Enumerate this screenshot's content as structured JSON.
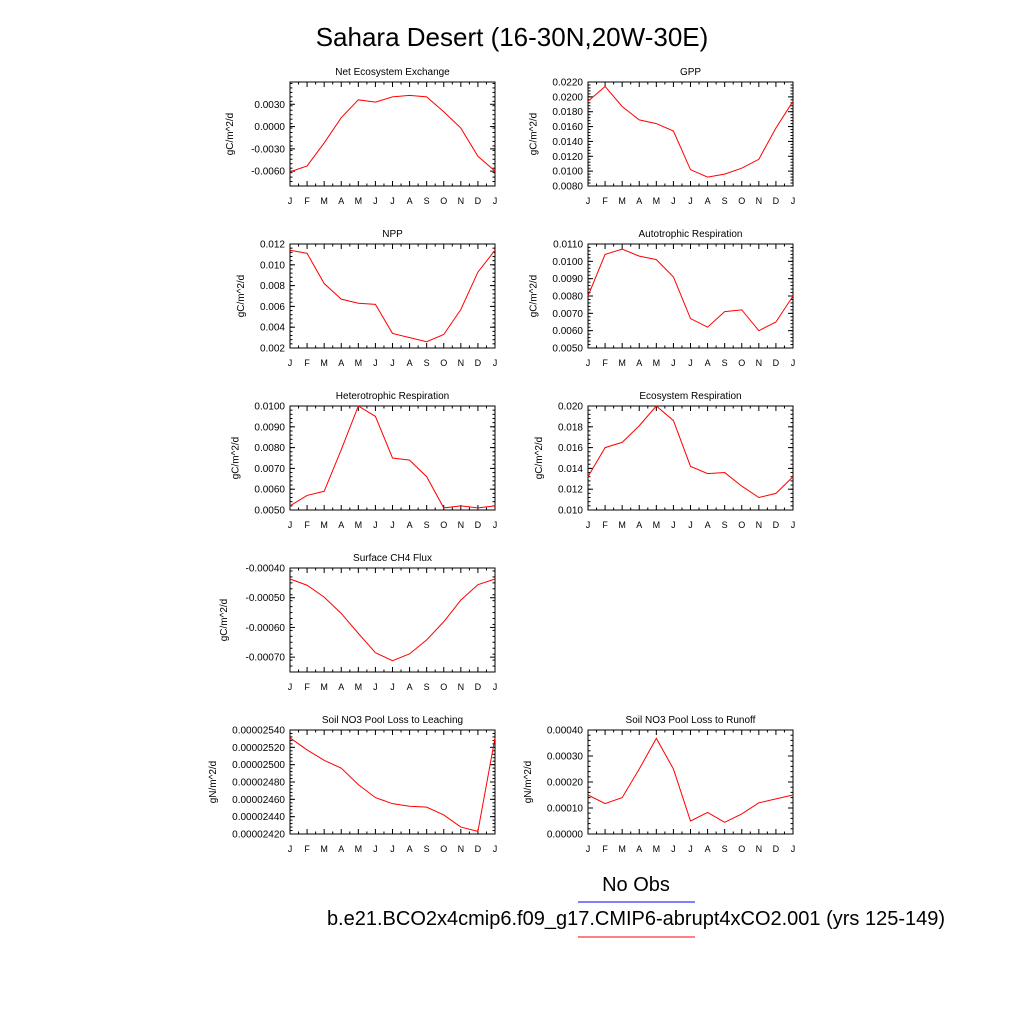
{
  "figure": {
    "title": "Sahara Desert (16-30N,20W-30E)",
    "legend": [
      {
        "label": "No Obs",
        "color": "#0000ff"
      },
      {
        "label": "b.e21.BCO2x4cmip6.f09_g17.CMIP6-abrupt4xCO2.001 (yrs 125-149)",
        "color": "#ff0000"
      }
    ]
  },
  "chart_data": [
    {
      "type": "line",
      "title": "Net Ecosystem Exchange",
      "ylabel": "gC/m^2/d",
      "categories": [
        "J",
        "F",
        "M",
        "A",
        "M",
        "J",
        "J",
        "A",
        "S",
        "O",
        "N",
        "D",
        "J"
      ],
      "ylim": [
        -0.008,
        0.006
      ],
      "yticks": [
        -0.006,
        -0.003,
        0.0,
        0.003
      ],
      "ytick_labels": [
        "-0.0060",
        "-0.0030",
        "0.0000",
        "0.0030"
      ],
      "series": [
        {
          "color": "#ff0000",
          "values": [
            -0.0061,
            -0.0053,
            -0.0022,
            0.0012,
            0.0036,
            0.0033,
            0.004,
            0.0042,
            0.004,
            0.002,
            -0.0002,
            -0.004,
            -0.006
          ]
        }
      ]
    },
    {
      "type": "line",
      "title": "GPP",
      "ylabel": "gC/m^2/d",
      "categories": [
        "J",
        "F",
        "M",
        "A",
        "M",
        "J",
        "J",
        "A",
        "S",
        "O",
        "N",
        "D",
        "J"
      ],
      "ylim": [
        0.008,
        0.022
      ],
      "yticks": [
        0.008,
        0.01,
        0.012,
        0.014,
        0.016,
        0.018,
        0.02,
        0.022
      ],
      "ytick_labels": [
        "0.0080",
        "0.0100",
        "0.0120",
        "0.0140",
        "0.0160",
        "0.0180",
        "0.0200",
        "0.0220"
      ],
      "series": [
        {
          "color": "#ff0000",
          "values": [
            0.0194,
            0.0214,
            0.0187,
            0.0169,
            0.0164,
            0.0154,
            0.0102,
            0.0092,
            0.0096,
            0.0104,
            0.0116,
            0.0158,
            0.0194
          ]
        }
      ]
    },
    {
      "type": "line",
      "title": "NPP",
      "ylabel": "gC/m^2/d",
      "categories": [
        "J",
        "F",
        "M",
        "A",
        "M",
        "J",
        "J",
        "A",
        "S",
        "O",
        "N",
        "D",
        "J"
      ],
      "ylim": [
        0.002,
        0.012
      ],
      "yticks": [
        0.002,
        0.004,
        0.006,
        0.008,
        0.01,
        0.012
      ],
      "ytick_labels": [
        "0.002",
        "0.004",
        "0.006",
        "0.008",
        "0.010",
        "0.012"
      ],
      "series": [
        {
          "color": "#ff0000",
          "values": [
            0.0114,
            0.0111,
            0.0082,
            0.0067,
            0.0063,
            0.0062,
            0.0034,
            0.003,
            0.0026,
            0.0033,
            0.0057,
            0.0093,
            0.0114
          ]
        }
      ]
    },
    {
      "type": "line",
      "title": "Autotrophic Respiration",
      "ylabel": "gC/m^2/d",
      "categories": [
        "J",
        "F",
        "M",
        "A",
        "M",
        "J",
        "J",
        "A",
        "S",
        "O",
        "N",
        "D",
        "J"
      ],
      "ylim": [
        0.005,
        0.011
      ],
      "yticks": [
        0.005,
        0.006,
        0.007,
        0.008,
        0.009,
        0.01,
        0.011
      ],
      "ytick_labels": [
        "0.0050",
        "0.0060",
        "0.0070",
        "0.0080",
        "0.0090",
        "0.0100",
        "0.0110"
      ],
      "series": [
        {
          "color": "#ff0000",
          "values": [
            0.008,
            0.0104,
            0.0107,
            0.0103,
            0.0101,
            0.0091,
            0.0067,
            0.0062,
            0.0071,
            0.0072,
            0.006,
            0.0065,
            0.008
          ]
        }
      ]
    },
    {
      "type": "line",
      "title": "Heterotrophic Respiration",
      "ylabel": "gC/m^2/d",
      "categories": [
        "J",
        "F",
        "M",
        "A",
        "M",
        "J",
        "J",
        "A",
        "S",
        "O",
        "N",
        "D",
        "J"
      ],
      "ylim": [
        0.005,
        0.01
      ],
      "yticks": [
        0.005,
        0.006,
        0.007,
        0.008,
        0.009,
        0.01
      ],
      "ytick_labels": [
        "0.0050",
        "0.0060",
        "0.0070",
        "0.0080",
        "0.0090",
        "0.0100"
      ],
      "series": [
        {
          "color": "#ff0000",
          "values": [
            0.0052,
            0.0057,
            0.0059,
            0.0079,
            0.01,
            0.0095,
            0.0075,
            0.0074,
            0.0066,
            0.0051,
            0.0052,
            0.0051,
            0.0052
          ]
        }
      ]
    },
    {
      "type": "line",
      "title": "Ecosystem Respiration",
      "ylabel": "gC/m^2/d",
      "categories": [
        "J",
        "F",
        "M",
        "A",
        "M",
        "J",
        "J",
        "A",
        "S",
        "O",
        "N",
        "D",
        "J"
      ],
      "ylim": [
        0.01,
        0.02
      ],
      "yticks": [
        0.01,
        0.012,
        0.014,
        0.016,
        0.018,
        0.02
      ],
      "ytick_labels": [
        "0.010",
        "0.012",
        "0.014",
        "0.016",
        "0.018",
        "0.020"
      ],
      "series": [
        {
          "color": "#ff0000",
          "values": [
            0.0132,
            0.016,
            0.0165,
            0.0181,
            0.02,
            0.0186,
            0.0142,
            0.0135,
            0.0136,
            0.0123,
            0.0112,
            0.0116,
            0.0132
          ]
        }
      ]
    },
    {
      "type": "line",
      "title": "Surface CH4 Flux",
      "ylabel": "gC/m^2/d",
      "categories": [
        "J",
        "F",
        "M",
        "A",
        "M",
        "J",
        "J",
        "A",
        "S",
        "O",
        "N",
        "D",
        "J"
      ],
      "ylim": [
        -0.00075,
        -0.0004
      ],
      "yticks": [
        -0.0007,
        -0.0006,
        -0.0005,
        -0.0004
      ],
      "ytick_labels": [
        "-0.00070",
        "-0.00060",
        "-0.00050",
        "-0.00040"
      ],
      "series": [
        {
          "color": "#ff0000",
          "values": [
            -0.000437,
            -0.000458,
            -0.000498,
            -0.000553,
            -0.00062,
            -0.000685,
            -0.000712,
            -0.000689,
            -0.000642,
            -0.000581,
            -0.000508,
            -0.000456,
            -0.000437
          ]
        }
      ]
    },
    {
      "type": "line",
      "title": "Soil NO3 Pool Loss to Leaching",
      "ylabel": "gN/m^2/d",
      "categories": [
        "J",
        "F",
        "M",
        "A",
        "M",
        "J",
        "J",
        "A",
        "S",
        "O",
        "N",
        "D",
        "J"
      ],
      "ylim": [
        2.42e-05,
        2.54e-05
      ],
      "yticks": [
        2.42e-05,
        2.44e-05,
        2.46e-05,
        2.48e-05,
        2.5e-05,
        2.52e-05,
        2.54e-05
      ],
      "ytick_labels": [
        "0.00002420",
        "0.00002440",
        "0.00002460",
        "0.00002480",
        "0.00002500",
        "0.00002520",
        "0.00002540"
      ],
      "series": [
        {
          "color": "#ff0000",
          "values": [
            2.531e-05,
            2.517e-05,
            2.505e-05,
            2.496e-05,
            2.477e-05,
            2.462e-05,
            2.455e-05,
            2.452e-05,
            2.451e-05,
            2.442e-05,
            2.428e-05,
            2.423e-05,
            2.531e-05
          ]
        }
      ]
    },
    {
      "type": "line",
      "title": "Soil NO3 Pool Loss to Runoff",
      "ylabel": "gN/m^2/d",
      "categories": [
        "J",
        "F",
        "M",
        "A",
        "M",
        "J",
        "J",
        "A",
        "S",
        "O",
        "N",
        "D",
        "J"
      ],
      "ylim": [
        0.0,
        0.0004
      ],
      "yticks": [
        0.0,
        0.0001,
        0.0002,
        0.0003,
        0.0004
      ],
      "ytick_labels": [
        "0.00000",
        "0.00010",
        "0.00020",
        "0.00030",
        "0.00040"
      ],
      "series": [
        {
          "color": "#ff0000",
          "values": [
            0.00015,
            0.000117,
            0.00014,
            0.00025,
            0.000368,
            0.00025,
            5e-05,
            8.3e-05,
            4.5e-05,
            7.7e-05,
            0.00012,
            0.000135,
            0.00015
          ]
        }
      ]
    }
  ]
}
